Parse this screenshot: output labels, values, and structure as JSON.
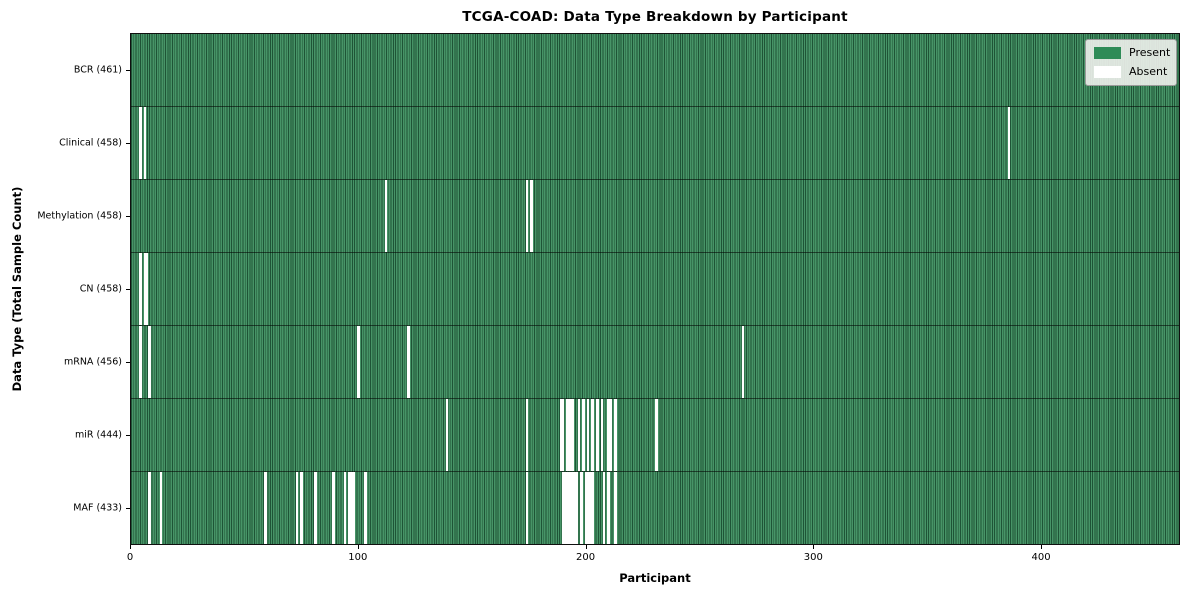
{
  "title": "TCGA-COAD: Data Type Breakdown by Participant",
  "xlabel": "Participant",
  "ylabel": "Data Type (Total Sample Count)",
  "legend": {
    "present_label": "Present",
    "absent_label": "Absent"
  },
  "colors": {
    "present": "#2e8b57",
    "absent": "#ffffff",
    "cell_edge": "#1c5436",
    "legend_bg": "#eceee9"
  },
  "chart_data": {
    "type": "heatmap",
    "title": "TCGA-COAD: Data Type Breakdown by Participant",
    "xlabel": "Participant",
    "ylabel": "Data Type (Total Sample Count)",
    "legend_entries": [
      "Present",
      "Absent"
    ],
    "legend_position": "upper right",
    "grid": false,
    "n_participants": 461,
    "xlim": [
      0,
      461
    ],
    "x_ticks": [
      0,
      100,
      200,
      300,
      400
    ],
    "rows": [
      {
        "data_type": "BCR",
        "label": "BCR (461)",
        "count": 461,
        "absent_participants": []
      },
      {
        "data_type": "Clinical",
        "label": "Clinical (458)",
        "count": 458,
        "absent_participants": [
          4,
          6,
          386
        ]
      },
      {
        "data_type": "Methylation",
        "label": "Methylation (458)",
        "count": 458,
        "absent_participants": [
          112,
          174,
          176
        ]
      },
      {
        "data_type": "CN",
        "label": "CN (458)",
        "count": 458,
        "absent_participants": [
          4,
          6,
          7
        ]
      },
      {
        "data_type": "mRNA",
        "label": "mRNA (456)",
        "count": 456,
        "absent_participants": [
          4,
          8,
          100,
          122,
          269
        ]
      },
      {
        "data_type": "miR",
        "label": "miR (444)",
        "count": 444,
        "absent_participants": [
          139,
          174,
          189,
          190,
          192,
          193,
          194,
          197,
          199,
          201,
          203,
          205,
          207,
          210,
          211,
          213,
          231
        ]
      },
      {
        "data_type": "MAF",
        "label": "MAF (433)",
        "count": 433,
        "absent_participants": [
          8,
          13,
          59,
          73,
          75,
          81,
          89,
          94,
          96,
          97,
          98,
          103,
          174,
          190,
          191,
          192,
          193,
          194,
          195,
          196,
          198,
          200,
          201,
          202,
          203,
          208,
          210,
          213
        ]
      }
    ]
  }
}
